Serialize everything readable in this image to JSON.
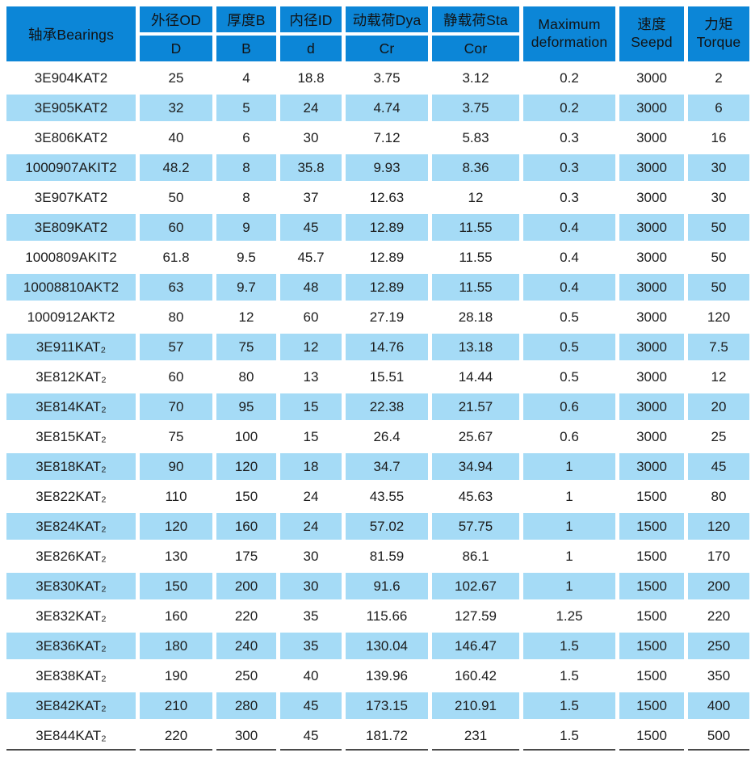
{
  "colors": {
    "header_blue": "#0c86d7",
    "row_light_blue": "#a5dbf6",
    "row_white": "#ffffff",
    "text": "#1c1c1c",
    "bottom_rule": "#4a4a4a"
  },
  "table": {
    "header": {
      "bearings": "轴承Bearings",
      "groups": [
        {
          "top": "外径OD",
          "bottom": "D"
        },
        {
          "top": "厚度B",
          "bottom": "B"
        },
        {
          "top": "内径ID",
          "bottom": "d"
        },
        {
          "top": "动载荷Dya",
          "bottom": "Cr"
        },
        {
          "top": "静载荷Sta",
          "bottom": "Cor"
        }
      ],
      "merged": [
        {
          "line1": "Maximum",
          "line2": "deformation"
        },
        {
          "line1": "速度",
          "line2": "Seepd"
        },
        {
          "line1": "力矩",
          "line2": "Torque"
        }
      ]
    },
    "rows": [
      [
        "3E904KAT2",
        "25",
        "4",
        "18.8",
        "3.75",
        "3.12",
        "0.2",
        "3000",
        "2"
      ],
      [
        "3E905KAT2",
        "32",
        "5",
        "24",
        "4.74",
        "3.75",
        "0.2",
        "3000",
        "6"
      ],
      [
        "3E806KAT2",
        "40",
        "6",
        "30",
        "7.12",
        "5.83",
        "0.3",
        "3000",
        "16"
      ],
      [
        "1000907AKIT2",
        "48.2",
        "8",
        "35.8",
        "9.93",
        "8.36",
        "0.3",
        "3000",
        "30"
      ],
      [
        "3E907KAT2",
        "50",
        "8",
        "37",
        "12.63",
        "12",
        "0.3",
        "3000",
        "30"
      ],
      [
        "3E809KAT2",
        "60",
        "9",
        "45",
        "12.89",
        "11.55",
        "0.4",
        "3000",
        "50"
      ],
      [
        "1000809AKIT2",
        "61.8",
        "9.5",
        "45.7",
        "12.89",
        "11.55",
        "0.4",
        "3000",
        "50"
      ],
      [
        "10008810AKT2",
        "63",
        "9.7",
        "48",
        "12.89",
        "11.55",
        "0.4",
        "3000",
        "50"
      ],
      [
        "1000912AKT2",
        "80",
        "12",
        "60",
        "27.19",
        "28.18",
        "0.5",
        "3000",
        "120"
      ],
      [
        "3E911KAT₂",
        "57",
        "75",
        "12",
        "14.76",
        "13.18",
        "0.5",
        "3000",
        "7.5"
      ],
      [
        "3E812KAT₂",
        "60",
        "80",
        "13",
        "15.51",
        "14.44",
        "0.5",
        "3000",
        "12"
      ],
      [
        "3E814KAT₂",
        "70",
        "95",
        "15",
        "22.38",
        "21.57",
        "0.6",
        "3000",
        "20"
      ],
      [
        "3E815KAT₂",
        "75",
        "100",
        "15",
        "26.4",
        "25.67",
        "0.6",
        "3000",
        "25"
      ],
      [
        "3E818KAT₂",
        "90",
        "120",
        "18",
        "34.7",
        "34.94",
        "1",
        "3000",
        "45"
      ],
      [
        "3E822KAT₂",
        "110",
        "150",
        "24",
        "43.55",
        "45.63",
        "1",
        "1500",
        "80"
      ],
      [
        "3E824KAT₂",
        "120",
        "160",
        "24",
        "57.02",
        "57.75",
        "1",
        "1500",
        "120"
      ],
      [
        "3E826KAT₂",
        "130",
        "175",
        "30",
        "81.59",
        "86.1",
        "1",
        "1500",
        "170"
      ],
      [
        "3E830KAT₂",
        "150",
        "200",
        "30",
        "91.6",
        "102.67",
        "1",
        "1500",
        "200"
      ],
      [
        "3E832KAT₂",
        "160",
        "220",
        "35",
        "115.66",
        "127.59",
        "1.25",
        "1500",
        "220"
      ],
      [
        "3E836KAT₂",
        "180",
        "240",
        "35",
        "130.04",
        "146.47",
        "1.5",
        "1500",
        "250"
      ],
      [
        "3E838KAT₂",
        "190",
        "250",
        "40",
        "139.96",
        "160.42",
        "1.5",
        "1500",
        "350"
      ],
      [
        "3E842KAT₂",
        "210",
        "280",
        "45",
        "173.15",
        "210.91",
        "1.5",
        "1500",
        "400"
      ],
      [
        "3E844KAT₂",
        "220",
        "300",
        "45",
        "181.72",
        "231",
        "1.5",
        "1500",
        "500"
      ]
    ]
  }
}
